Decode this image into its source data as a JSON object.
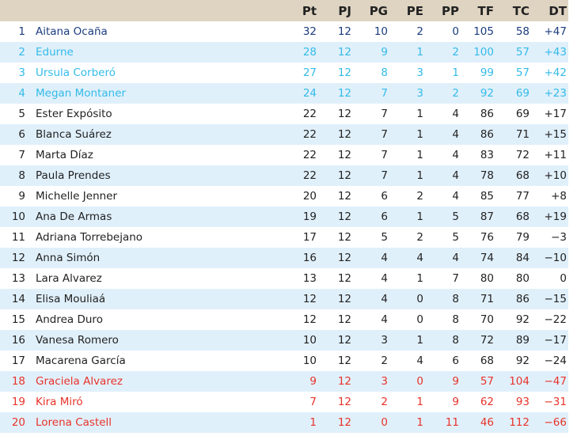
{
  "headers": [
    "",
    "",
    "Pt",
    "PJ",
    "PG",
    "PE",
    "PP",
    "TF",
    "TC",
    "DT"
  ],
  "colors": {
    "header_bg": "#dfd4c2",
    "alt_row": "#e0f0fb",
    "leader": "#1b3c7e",
    "europe": "#33bbe8",
    "relegation": "#e8332a"
  },
  "rows": [
    [
      "1",
      "Aitana Ocaña",
      "32",
      "12",
      "10",
      "2",
      "0",
      "105",
      "58",
      "+47"
    ],
    [
      "2",
      "Edurne",
      "28",
      "12",
      "9",
      "1",
      "2",
      "100",
      "57",
      "+43"
    ],
    [
      "3",
      "Ursula Corberó",
      "27",
      "12",
      "8",
      "3",
      "1",
      "99",
      "57",
      "+42"
    ],
    [
      "4",
      "Megan Montaner",
      "24",
      "12",
      "7",
      "3",
      "2",
      "92",
      "69",
      "+23"
    ],
    [
      "5",
      "Ester Expósito",
      "22",
      "12",
      "7",
      "1",
      "4",
      "86",
      "69",
      "+17"
    ],
    [
      "6",
      "Blanca Suárez",
      "22",
      "12",
      "7",
      "1",
      "4",
      "86",
      "71",
      "+15"
    ],
    [
      "7",
      "Marta Díaz",
      "22",
      "12",
      "7",
      "1",
      "4",
      "83",
      "72",
      "+11"
    ],
    [
      "8",
      "Paula Prendes",
      "22",
      "12",
      "7",
      "1",
      "4",
      "78",
      "68",
      "+10"
    ],
    [
      "9",
      "Michelle Jenner",
      "20",
      "12",
      "6",
      "2",
      "4",
      "85",
      "77",
      "+8"
    ],
    [
      "10",
      "Ana De Armas",
      "19",
      "12",
      "6",
      "1",
      "5",
      "87",
      "68",
      "+19"
    ],
    [
      "11",
      "Adriana Torrebejano",
      "17",
      "12",
      "5",
      "2",
      "5",
      "76",
      "79",
      "−3"
    ],
    [
      "12",
      "Anna Simón",
      "16",
      "12",
      "4",
      "4",
      "4",
      "74",
      "84",
      "−10"
    ],
    [
      "13",
      "Lara Alvarez",
      "13",
      "12",
      "4",
      "1",
      "7",
      "80",
      "80",
      "0"
    ],
    [
      "14",
      "Elisa Mouliaá",
      "12",
      "12",
      "4",
      "0",
      "8",
      "71",
      "86",
      "−15"
    ],
    [
      "15",
      "Andrea Duro",
      "12",
      "12",
      "4",
      "0",
      "8",
      "70",
      "92",
      "−22"
    ],
    [
      "16",
      "Vanesa Romero",
      "10",
      "12",
      "3",
      "1",
      "8",
      "72",
      "89",
      "−17"
    ],
    [
      "17",
      "Macarena García",
      "10",
      "12",
      "2",
      "4",
      "6",
      "68",
      "92",
      "−24"
    ],
    [
      "18",
      "Graciela Alvarez",
      "9",
      "12",
      "3",
      "0",
      "9",
      "57",
      "104",
      "−47"
    ],
    [
      "19",
      "Kira Miró",
      "7",
      "12",
      "2",
      "1",
      "9",
      "62",
      "93",
      "−31"
    ],
    [
      "20",
      "Lorena Castell",
      "1",
      "12",
      "0",
      "1",
      "11",
      "46",
      "112",
      "−66"
    ]
  ]
}
